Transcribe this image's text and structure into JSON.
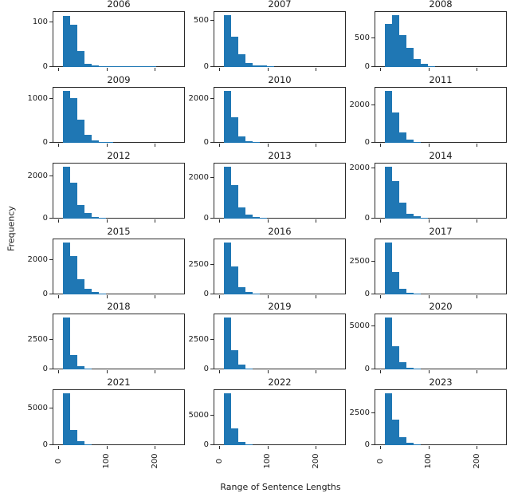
{
  "figure": {
    "xlabel": "Range of Sentence Lengths",
    "ylabel": "Frequency",
    "bar_color": "#1f77b4",
    "axis_color": "#2b2b2b"
  },
  "chart_data": {
    "type": "bar",
    "note": "grid of 18 histograms of sentence lengths per year, 6 rows x 3 cols",
    "xlabel": "Range of Sentence Lengths",
    "ylabel": "Frequency",
    "x_ticks": [
      0,
      100,
      200
    ],
    "xlim": [
      -13,
      262
    ],
    "bin_start": 8,
    "bin_width": 15,
    "grid": false,
    "subplots": [
      {
        "title": "2006",
        "y_ticks": [
          0,
          100
        ],
        "ylim": 122,
        "values": [
          115,
          95,
          35,
          8,
          3,
          2,
          1,
          1,
          2,
          1,
          1,
          1,
          2
        ]
      },
      {
        "title": "2007",
        "y_ticks": [
          0,
          500
        ],
        "ylim": 590,
        "values": [
          560,
          330,
          140,
          45,
          20,
          15,
          5,
          2
        ]
      },
      {
        "title": "2008",
        "y_ticks": [
          0,
          500
        ],
        "ylim": 945,
        "values": [
          750,
          900,
          550,
          330,
          140,
          50,
          15,
          5
        ]
      },
      {
        "title": "2009",
        "y_ticks": [
          0,
          1000
        ],
        "ylim": 1240,
        "values": [
          1180,
          1020,
          530,
          180,
          60,
          25,
          10
        ]
      },
      {
        "title": "2010",
        "y_ticks": [
          0,
          2000
        ],
        "ylim": 2470,
        "values": [
          2350,
          1150,
          280,
          80,
          25,
          10
        ]
      },
      {
        "title": "2011",
        "y_ticks": [
          0,
          2000
        ],
        "ylim": 2890,
        "values": [
          2750,
          1600,
          550,
          180,
          50,
          15
        ]
      },
      {
        "title": "2012",
        "y_ticks": [
          0,
          2000
        ],
        "ylim": 2570,
        "values": [
          2450,
          1700,
          650,
          280,
          80,
          20
        ]
      },
      {
        "title": "2013",
        "y_ticks": [
          0,
          2000
        ],
        "ylim": 2680,
        "values": [
          2550,
          1650,
          550,
          180,
          60,
          20
        ]
      },
      {
        "title": "2014",
        "y_ticks": [
          0,
          2000
        ],
        "ylim": 2150,
        "values": [
          2050,
          1500,
          620,
          200,
          90,
          25
        ]
      },
      {
        "title": "2015",
        "y_ticks": [
          0,
          2000
        ],
        "ylim": 3200,
        "values": [
          3050,
          2250,
          900,
          350,
          120,
          30
        ]
      },
      {
        "title": "2016",
        "y_ticks": [
          0,
          2500
        ],
        "ylim": 4620,
        "values": [
          4400,
          2400,
          600,
          180,
          50
        ]
      },
      {
        "title": "2017",
        "y_ticks": [
          0,
          2500
        ],
        "ylim": 4100,
        "values": [
          3900,
          1700,
          450,
          130,
          40
        ]
      },
      {
        "title": "2018",
        "y_ticks": [
          0,
          2500
        ],
        "ylim": 4620,
        "values": [
          4400,
          1200,
          280,
          80,
          30
        ]
      },
      {
        "title": "2019",
        "y_ticks": [
          0,
          2500
        ],
        "ylim": 4620,
        "values": [
          4400,
          1600,
          400,
          100,
          30
        ]
      },
      {
        "title": "2020",
        "y_ticks": [
          0,
          5000
        ],
        "ylim": 6300,
        "values": [
          6000,
          2700,
          800,
          200,
          80,
          20
        ]
      },
      {
        "title": "2021",
        "y_ticks": [
          0,
          5000
        ],
        "ylim": 7450,
        "values": [
          7100,
          2100,
          500,
          130,
          40
        ]
      },
      {
        "title": "2022",
        "y_ticks": [
          0,
          5000
        ],
        "ylim": 9130,
        "values": [
          8700,
          2800,
          550,
          150,
          40
        ]
      },
      {
        "title": "2023",
        "y_ticks": [
          0,
          2500
        ],
        "ylim": 4200,
        "values": [
          4000,
          2000,
          600,
          200,
          80,
          20
        ]
      }
    ]
  }
}
